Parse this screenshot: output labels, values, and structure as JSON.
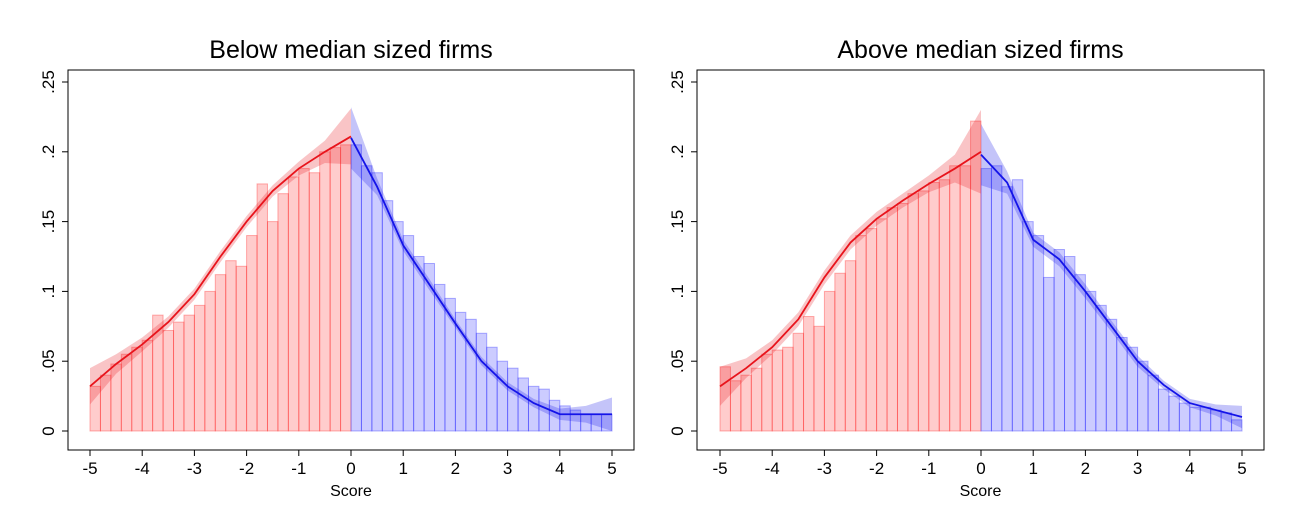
{
  "chart_data": [
    {
      "type": "histogram",
      "title": "Below median sized firms",
      "xlabel": "Score",
      "xlim": [
        -5,
        5
      ],
      "ylim": [
        0,
        0.25
      ],
      "xticks": [
        -5,
        -4,
        -3,
        -2,
        -1,
        0,
        1,
        2,
        3,
        4,
        5
      ],
      "yticks": [
        0,
        {
          "value": 0.05,
          "label": ".05"
        },
        {
          "value": 0.1,
          "label": ".1"
        },
        {
          "value": 0.15,
          "label": ".15"
        },
        {
          "value": 0.2,
          "label": ".2"
        },
        {
          "value": 0.25,
          "label": ".25"
        }
      ],
      "histograms": [
        {
          "color": "#ff0000",
          "bins": [
            -5,
            -4.8,
            -4.6,
            -4.4,
            -4.2,
            -4,
            -3.8,
            -3.6,
            -3.4,
            -3.2,
            -3,
            -2.8,
            -2.6,
            -2.4,
            -2.2,
            -2,
            -1.8,
            -1.6,
            -1.4,
            -1.2,
            -1,
            -0.8,
            -0.6,
            -0.4,
            -0.2,
            0
          ],
          "counts": [
            0.032,
            0.04,
            0.048,
            0.055,
            0.06,
            0.065,
            0.083,
            0.072,
            0.078,
            0.083,
            0.09,
            0.1,
            0.112,
            0.122,
            0.118,
            0.14,
            0.177,
            0.15,
            0.17,
            0.182,
            0.188,
            0.185,
            0.2,
            0.203,
            0.205
          ]
        },
        {
          "color": "#0000ff",
          "bins": [
            0,
            0.2,
            0.4,
            0.6,
            0.8,
            1,
            1.2,
            1.4,
            1.6,
            1.8,
            2,
            2.2,
            2.4,
            2.6,
            2.8,
            3,
            3.2,
            3.4,
            3.6,
            3.8,
            4,
            4.2,
            4.4,
            4.6,
            4.8,
            5
          ],
          "counts": [
            0.205,
            0.19,
            0.185,
            0.165,
            0.15,
            0.14,
            0.125,
            0.12,
            0.105,
            0.095,
            0.085,
            0.08,
            0.07,
            0.06,
            0.05,
            0.045,
            0.038,
            0.032,
            0.03,
            0.022,
            0.018,
            0.015,
            0.012,
            0.012,
            0.012
          ]
        }
      ],
      "fits": [
        {
          "color": "#e8141c",
          "x": [
            -5,
            -4.5,
            -4,
            -3.5,
            -3,
            -2.5,
            -2,
            -1.5,
            -1,
            -0.5,
            0
          ],
          "y": [
            0.032,
            0.048,
            0.062,
            0.078,
            0.098,
            0.125,
            0.15,
            0.172,
            0.188,
            0.2,
            0.211
          ],
          "lower": [
            0.019,
            0.041,
            0.057,
            0.074,
            0.094,
            0.121,
            0.146,
            0.168,
            0.183,
            0.192,
            0.191
          ],
          "upper": [
            0.045,
            0.055,
            0.067,
            0.082,
            0.102,
            0.129,
            0.154,
            0.176,
            0.193,
            0.208,
            0.231
          ]
        },
        {
          "color": "#1414e8",
          "x": [
            0,
            0.5,
            1,
            1.5,
            2,
            2.5,
            3,
            3.5,
            4,
            4.5,
            5
          ],
          "y": [
            0.21,
            0.175,
            0.133,
            0.105,
            0.077,
            0.05,
            0.032,
            0.02,
            0.012,
            0.012,
            0.012
          ],
          "lower": [
            0.188,
            0.169,
            0.129,
            0.101,
            0.074,
            0.047,
            0.029,
            0.017,
            0.008,
            0.006,
            0
          ],
          "upper": [
            0.232,
            0.181,
            0.137,
            0.109,
            0.08,
            0.053,
            0.035,
            0.023,
            0.016,
            0.018,
            0.024
          ]
        }
      ]
    },
    {
      "type": "histogram",
      "title": "Above median sized firms",
      "xlabel": "Score",
      "xlim": [
        -5,
        5
      ],
      "ylim": [
        0,
        0.25
      ],
      "xticks": [
        -5,
        -4,
        -3,
        -2,
        -1,
        0,
        1,
        2,
        3,
        4,
        5
      ],
      "yticks": [
        0,
        {
          "value": 0.05,
          "label": ".05"
        },
        {
          "value": 0.1,
          "label": ".1"
        },
        {
          "value": 0.15,
          "label": ".15"
        },
        {
          "value": 0.2,
          "label": ".2"
        },
        {
          "value": 0.25,
          "label": ".25"
        }
      ],
      "histograms": [
        {
          "color": "#ff0000",
          "bins": [
            -5,
            -4.8,
            -4.6,
            -4.4,
            -4.2,
            -4,
            -3.8,
            -3.6,
            -3.4,
            -3.2,
            -3,
            -2.8,
            -2.6,
            -2.4,
            -2.2,
            -2,
            -1.8,
            -1.6,
            -1.4,
            -1.2,
            -1,
            -0.8,
            -0.6,
            -0.4,
            -0.2,
            0
          ],
          "counts": [
            0.046,
            0.036,
            0.04,
            0.045,
            0.055,
            0.058,
            0.06,
            0.07,
            0.082,
            0.075,
            0.1,
            0.113,
            0.122,
            0.14,
            0.145,
            0.152,
            0.16,
            0.163,
            0.17,
            0.172,
            0.178,
            0.18,
            0.19,
            0.19,
            0.222
          ]
        },
        {
          "color": "#0000ff",
          "bins": [
            0,
            0.2,
            0.4,
            0.6,
            0.8,
            1,
            1.2,
            1.4,
            1.6,
            1.8,
            2,
            2.2,
            2.4,
            2.6,
            2.8,
            3,
            3.2,
            3.4,
            3.6,
            3.8,
            4,
            4.2,
            4.4,
            4.6,
            4.8,
            5
          ],
          "counts": [
            0.188,
            0.19,
            0.175,
            0.18,
            0.15,
            0.14,
            0.11,
            0.13,
            0.125,
            0.112,
            0.1,
            0.09,
            0.08,
            0.067,
            0.06,
            0.05,
            0.04,
            0.03,
            0.025,
            0.02,
            0.017,
            0.017,
            0.015,
            0.013,
            0.008
          ]
        }
      ],
      "fits": [
        {
          "color": "#e8141c",
          "x": [
            -5,
            -4.5,
            -4,
            -3.5,
            -3,
            -2.5,
            -2,
            -1.5,
            -1,
            -0.5,
            0
          ],
          "y": [
            0.032,
            0.045,
            0.06,
            0.08,
            0.11,
            0.135,
            0.152,
            0.165,
            0.177,
            0.188,
            0.2
          ],
          "lower": [
            0.018,
            0.038,
            0.055,
            0.075,
            0.105,
            0.13,
            0.147,
            0.16,
            0.171,
            0.178,
            0.17
          ],
          "upper": [
            0.046,
            0.052,
            0.065,
            0.085,
            0.115,
            0.14,
            0.157,
            0.17,
            0.183,
            0.198,
            0.23
          ]
        },
        {
          "color": "#1414e8",
          "x": [
            0,
            0.5,
            1,
            1.5,
            2,
            2.5,
            3,
            3.5,
            4,
            4.5,
            5
          ],
          "y": [
            0.198,
            0.178,
            0.137,
            0.123,
            0.1,
            0.075,
            0.05,
            0.033,
            0.02,
            0.015,
            0.01
          ],
          "lower": [
            0.176,
            0.17,
            0.132,
            0.118,
            0.095,
            0.071,
            0.046,
            0.03,
            0.017,
            0.011,
            0.002
          ],
          "upper": [
            0.22,
            0.186,
            0.142,
            0.128,
            0.105,
            0.079,
            0.054,
            0.036,
            0.023,
            0.019,
            0.018
          ]
        }
      ]
    }
  ]
}
